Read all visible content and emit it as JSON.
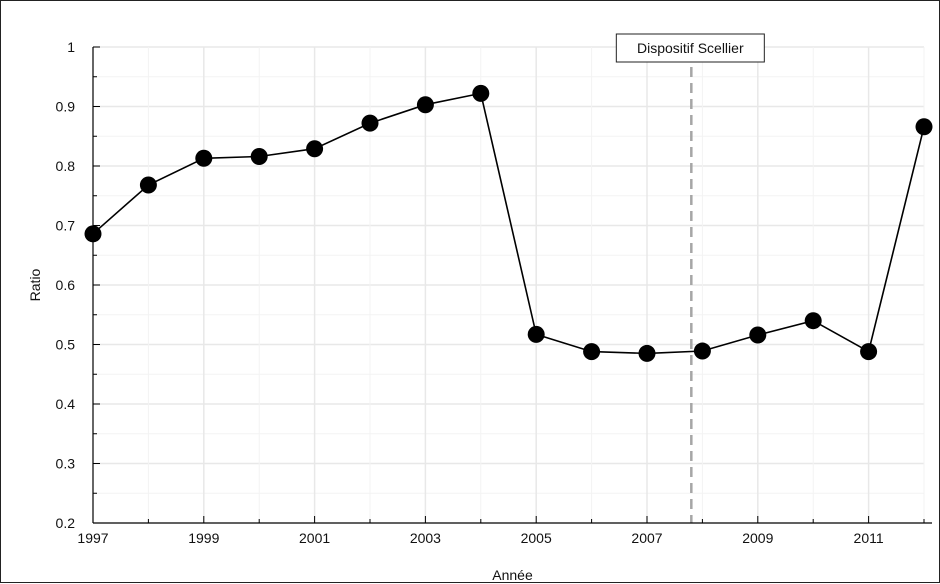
{
  "chart_data": {
    "type": "line",
    "xlabel": "Année",
    "ylabel": "Ratio",
    "xlim": [
      1997,
      2012
    ],
    "ylim": [
      0.2,
      1
    ],
    "x_ticks": [
      "1997",
      "1999",
      "2001",
      "2003",
      "2005",
      "2007",
      "2009",
      "2011"
    ],
    "y_ticks": [
      "0.2",
      "0.3",
      "0.4",
      "0.5",
      "0.6",
      "0.7",
      "0.8",
      "0.9",
      "1"
    ],
    "grid": true,
    "series": [
      {
        "x": [
          1997,
          1998,
          1999,
          2000,
          2001,
          2002,
          2003,
          2004,
          2005,
          2006,
          2007,
          2008,
          2009,
          2010,
          2011,
          2012
        ],
        "values": [
          0.686,
          0.768,
          0.813,
          0.816,
          0.829,
          0.872,
          0.903,
          0.922,
          0.517,
          0.488,
          0.485,
          0.489,
          0.516,
          0.54,
          0.488,
          0.866
        ]
      }
    ],
    "annotations": [
      {
        "label": "Dispositif Scellier",
        "x": 2007.8,
        "style": "dashed-vertical-line"
      }
    ],
    "colors": {
      "line": "#000000",
      "marker": "#000000",
      "annotation_line": "#a6a6a6",
      "grid": "#e8e8e8"
    }
  }
}
